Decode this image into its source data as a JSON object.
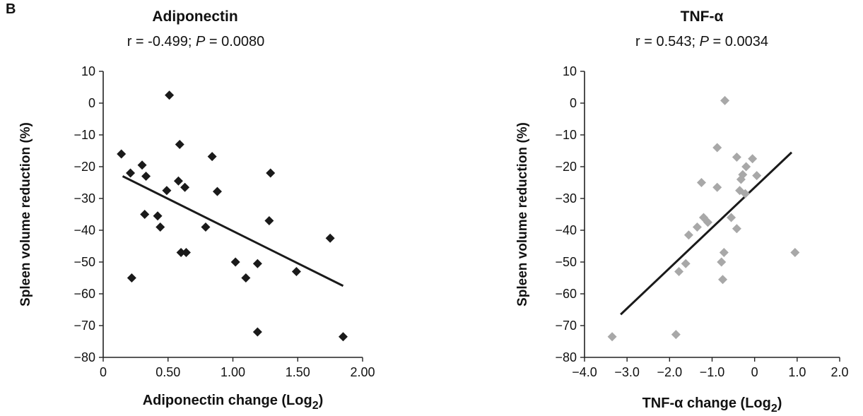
{
  "panel_label": "B",
  "chart_data": [
    {
      "type": "scatter",
      "title": "Adiponectin",
      "subtitle": {
        "prefix": "r = -0.499; ",
        "p_label": "P",
        "suffix": " = 0.0080"
      },
      "xlabel": {
        "main": "Adiponectin change (Log",
        "sub": "2",
        "end": ")"
      },
      "ylabel": "Spleen volume reduction (%)",
      "xlim": [
        0,
        2.0
      ],
      "ylim": [
        -80,
        10
      ],
      "xticks": [
        0,
        0.5,
        1.0,
        1.5,
        2.0
      ],
      "xtick_labels": [
        "0",
        "0.50",
        "1.00",
        "1.50",
        "2.00"
      ],
      "yticks": [
        10,
        0,
        -10,
        -20,
        -30,
        -40,
        -50,
        -60,
        -70,
        -80
      ],
      "ytick_labels": [
        "10",
        "0",
        "−10",
        "−20",
        "−30",
        "−40",
        "−50",
        "−60",
        "−70",
        "−80"
      ],
      "marker_color": "#1a1a1a",
      "trendline": {
        "x": [
          0.15,
          1.85
        ],
        "y": [
          -23,
          -57.5
        ]
      },
      "points": [
        {
          "x": 0.14,
          "y": -16
        },
        {
          "x": 0.21,
          "y": -22
        },
        {
          "x": 0.22,
          "y": -55
        },
        {
          "x": 0.3,
          "y": -19.5
        },
        {
          "x": 0.32,
          "y": -35
        },
        {
          "x": 0.33,
          "y": -23
        },
        {
          "x": 0.42,
          "y": -35.5
        },
        {
          "x": 0.44,
          "y": -39
        },
        {
          "x": 0.49,
          "y": -27.5
        },
        {
          "x": 0.51,
          "y": 2.5
        },
        {
          "x": 0.58,
          "y": -24.5
        },
        {
          "x": 0.59,
          "y": -13
        },
        {
          "x": 0.6,
          "y": -47
        },
        {
          "x": 0.63,
          "y": -26.5
        },
        {
          "x": 0.64,
          "y": -47
        },
        {
          "x": 0.79,
          "y": -39
        },
        {
          "x": 0.84,
          "y": -16.8
        },
        {
          "x": 0.88,
          "y": -27.8
        },
        {
          "x": 1.02,
          "y": -50
        },
        {
          "x": 1.1,
          "y": -55
        },
        {
          "x": 1.19,
          "y": -50.5
        },
        {
          "x": 1.19,
          "y": -72
        },
        {
          "x": 1.28,
          "y": -37
        },
        {
          "x": 1.29,
          "y": -22
        },
        {
          "x": 1.49,
          "y": -53
        },
        {
          "x": 1.75,
          "y": -42.5
        },
        {
          "x": 1.85,
          "y": -73.5
        }
      ]
    },
    {
      "type": "scatter",
      "title": "TNF-α",
      "subtitle": {
        "prefix": "r = 0.543; ",
        "p_label": "P",
        "suffix": " = 0.0034"
      },
      "xlabel": {
        "main": "TNF-α change (Log",
        "sub": "2",
        "end": ")"
      },
      "ylabel": "Spleen volume reduction (%)",
      "xlim": [
        -4.0,
        2.0
      ],
      "ylim": [
        -80,
        10
      ],
      "xticks": [
        -4,
        -3,
        -2,
        -1,
        0,
        1,
        2
      ],
      "xtick_labels": [
        "−4.0",
        "−3.0",
        "−2.0",
        "−1.0",
        "0",
        "1.0",
        "2.0"
      ],
      "yticks": [
        10,
        0,
        -10,
        -20,
        -30,
        -40,
        -50,
        -60,
        -70,
        -80
      ],
      "ytick_labels": [
        "10",
        "0",
        "−10",
        "−20",
        "−30",
        "−40",
        "−50",
        "−60",
        "−70",
        "−80"
      ],
      "marker_color": "#a8a8a8",
      "trendline": {
        "x": [
          -3.15,
          0.87
        ],
        "y": [
          -66.5,
          -15.5
        ]
      },
      "points": [
        {
          "x": -3.35,
          "y": -73.5
        },
        {
          "x": -1.85,
          "y": -72.8
        },
        {
          "x": -1.78,
          "y": -53
        },
        {
          "x": -1.62,
          "y": -50.5
        },
        {
          "x": -1.55,
          "y": -41.5
        },
        {
          "x": -1.35,
          "y": -39
        },
        {
          "x": -1.25,
          "y": -25
        },
        {
          "x": -1.2,
          "y": -36
        },
        {
          "x": -1.1,
          "y": -37.5
        },
        {
          "x": -0.88,
          "y": -14
        },
        {
          "x": -0.88,
          "y": -26.5
        },
        {
          "x": -0.78,
          "y": -50
        },
        {
          "x": -0.75,
          "y": -55.5
        },
        {
          "x": -0.72,
          "y": -47
        },
        {
          "x": -0.7,
          "y": 0.8
        },
        {
          "x": -0.55,
          "y": -36
        },
        {
          "x": -0.42,
          "y": -17
        },
        {
          "x": -0.42,
          "y": -39.5
        },
        {
          "x": -0.35,
          "y": -27.5
        },
        {
          "x": -0.32,
          "y": -24
        },
        {
          "x": -0.28,
          "y": -22.5
        },
        {
          "x": -0.22,
          "y": -28.5
        },
        {
          "x": -0.2,
          "y": -20
        },
        {
          "x": -0.05,
          "y": -17.5
        },
        {
          "x": 0.05,
          "y": -22.8
        },
        {
          "x": 0.95,
          "y": -47
        }
      ]
    }
  ]
}
